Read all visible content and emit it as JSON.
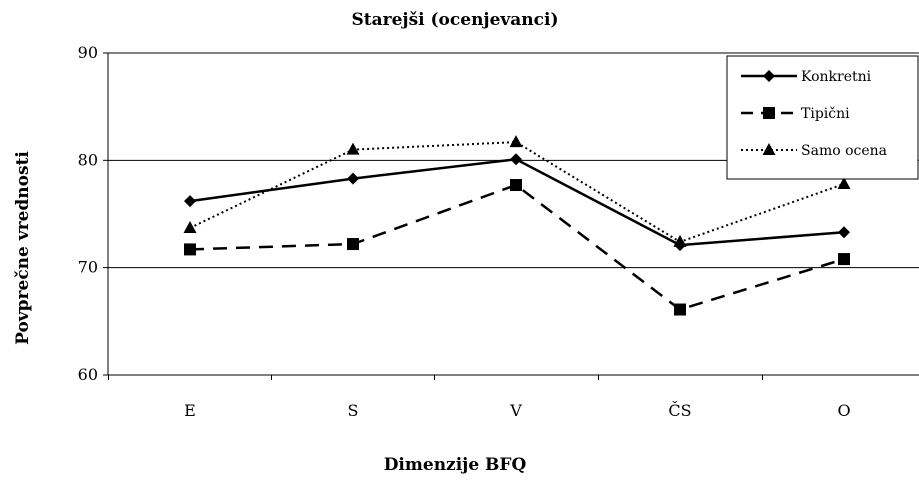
{
  "chart_data": {
    "type": "line",
    "title": "Starejši (ocenjevanci)",
    "xlabel": "Dimenzije BFQ",
    "ylabel": "Povprečne vrednosti",
    "categories": [
      "E",
      "S",
      "V",
      "ČS",
      "O"
    ],
    "ylim": [
      60,
      90
    ],
    "yticks": [
      "60",
      "70",
      "80",
      "90"
    ],
    "grid": "horizontal",
    "legend_position": "top-right",
    "series": [
      {
        "name": "Konkretni",
        "values": [
          76.2,
          78.3,
          80.1,
          72.1,
          73.3
        ],
        "marker": "diamond",
        "line": "solid",
        "color": "#000000"
      },
      {
        "name": "Tipični",
        "values": [
          71.7,
          72.2,
          77.7,
          66.1,
          70.8
        ],
        "marker": "square",
        "line": "dashed",
        "color": "#000000"
      },
      {
        "name": "Samo ocena",
        "values": [
          73.7,
          81.0,
          81.7,
          72.4,
          77.8
        ],
        "marker": "triangle",
        "line": "dotted",
        "color": "#000000"
      }
    ]
  }
}
